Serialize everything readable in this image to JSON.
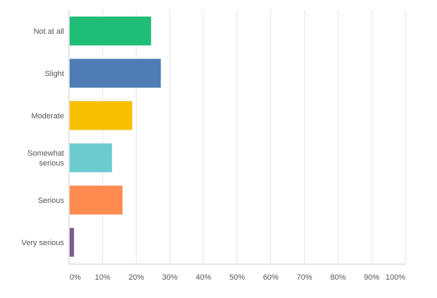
{
  "chart_data": {
    "type": "bar",
    "orientation": "horizontal",
    "title": "",
    "xlabel": "",
    "ylabel": "",
    "categories": [
      {
        "label": [
          "Not at all"
        ],
        "value": 24.2,
        "color": "#1ebe78"
      },
      {
        "label": [
          "Slight"
        ],
        "value": 27.1,
        "color": "#507cb6"
      },
      {
        "label": [
          "Moderate"
        ],
        "value": 18.6,
        "color": "#f6bf00"
      },
      {
        "label": [
          "Somewhat",
          "serious"
        ],
        "value": 12.6,
        "color": "#6ccbcf"
      },
      {
        "label": [
          "Serious"
        ],
        "value": 15.7,
        "color": "#ff8b4f"
      },
      {
        "label": [
          "Very serious"
        ],
        "value": 1.3,
        "color": "#7c5c91"
      }
    ],
    "xlim": [
      0,
      100
    ],
    "ticks": [
      "0%",
      "10%",
      "20%",
      "30%",
      "40%",
      "50%",
      "60%",
      "70%",
      "80%",
      "90%",
      "100%"
    ],
    "grid": true,
    "legend": "none"
  }
}
